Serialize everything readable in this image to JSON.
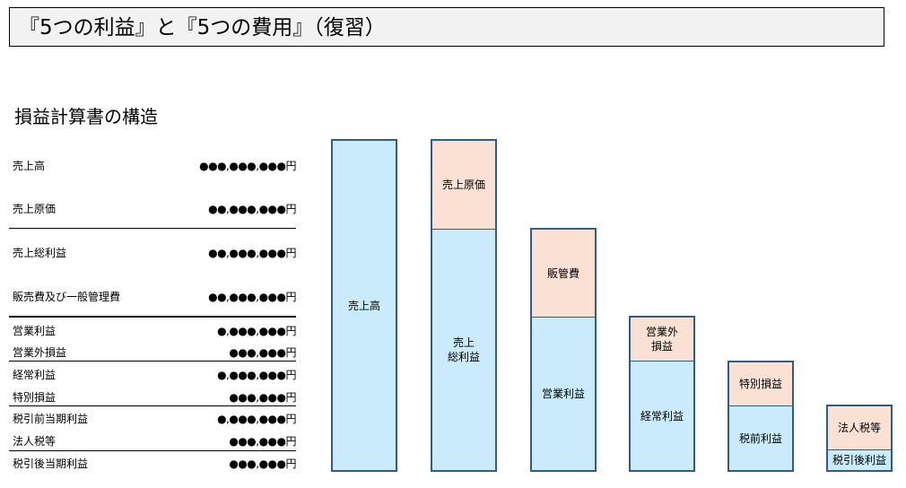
{
  "title": "『5つの利益』と『5つの費用』（復習）",
  "subtitle": "損益計算書の構造",
  "statement": [
    {
      "label": "売上高",
      "value": "●●●,●●●,●●●円"
    },
    {
      "label": "売上原価",
      "value": "●●,●●●,●●●円"
    },
    {
      "label": "売上総利益",
      "value": "●●,●●●,●●●円"
    },
    {
      "label": "販売費及び一般管理費",
      "value": "●●,●●●,●●●円"
    },
    {
      "label": "営業利益",
      "value": "●,●●●,●●●円"
    },
    {
      "label": "営業外損益",
      "value": "●●●,●●●円"
    },
    {
      "label": "経常利益",
      "value": "●,●●●,●●●円"
    },
    {
      "label": "特別損益",
      "value": "●●●,●●●円"
    },
    {
      "label": "税引前当期利益",
      "value": "●,●●●,●●●円"
    },
    {
      "label": "法人税等",
      "value": "●●●,●●●円"
    },
    {
      "label": "税引後当期利益",
      "value": "●●●,●●●円"
    }
  ],
  "diagram": {
    "sales": "売上高",
    "cogs": "売上原価",
    "gross_profit": "売上\n総利益",
    "sga": "販管費",
    "operating_profit": "営業利益",
    "non_operating": "営業外\n損益",
    "ordinary_profit": "経常利益",
    "extraordinary": "特別損益",
    "pretax_profit": "税前利益",
    "tax": "法人税等",
    "net_profit": "税引後利益"
  },
  "colors": {
    "profit": "#c9ebfb",
    "cost": "#fbe1d3",
    "border": "#2e5d8a"
  }
}
